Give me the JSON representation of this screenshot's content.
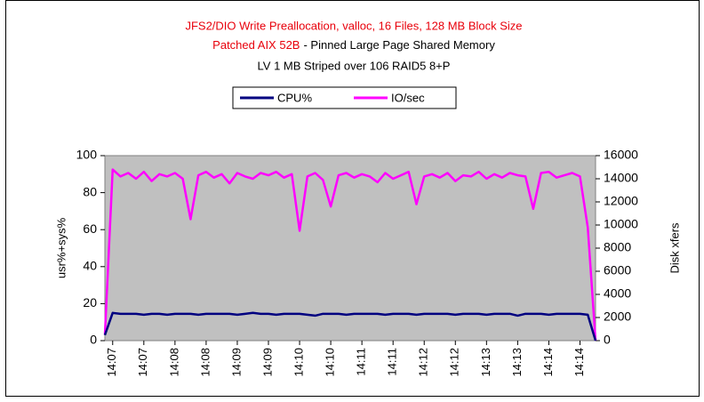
{
  "chart_data": {
    "type": "line",
    "title": "JFS2/DIO Write Preallocation, valloc, 16 Files, 128 MB Block Size",
    "subtitle": [
      "Patched AIX 52B",
      "- Pinned Large Page Shared Memory"
    ],
    "subtitle2": "LV 1 MB Striped over 106 RAID5 8+P",
    "y_label": "usr%+sys%",
    "y2_label": "Disk xfers",
    "legend": "top",
    "categories": [
      null,
      "14:07",
      null,
      null,
      null,
      "14:07",
      null,
      null,
      null,
      "14:08",
      null,
      null,
      null,
      "14:08",
      null,
      null,
      null,
      "14:09",
      null,
      null,
      null,
      "14:09",
      null,
      null,
      null,
      "14:10",
      null,
      null,
      null,
      "14:10",
      null,
      null,
      null,
      "14:11",
      null,
      null,
      null,
      "14:11",
      null,
      null,
      null,
      "14:12",
      null,
      null,
      null,
      "14:12",
      null,
      null,
      null,
      "14:13",
      null,
      null,
      null,
      "14:13",
      null,
      null,
      null,
      "14:14",
      null,
      null,
      null,
      "14:14",
      null,
      null
    ],
    "series": [
      {
        "name": "CPU%",
        "color": "#000080",
        "values": [
          3,
          15,
          14.5,
          14.5,
          14.5,
          14,
          14.5,
          14.5,
          14,
          14.5,
          14.5,
          14.5,
          14,
          14.5,
          14.5,
          14.5,
          14.5,
          14,
          14.5,
          15,
          14.5,
          14.5,
          14,
          14.5,
          14.5,
          14.5,
          14,
          13.5,
          14.5,
          14.5,
          14.5,
          14,
          14.5,
          14.5,
          14.5,
          14.5,
          14,
          14.5,
          14.5,
          14.5,
          14,
          14.5,
          14.5,
          14.5,
          14.5,
          14,
          14.5,
          14.5,
          14.5,
          14,
          14.5,
          14.5,
          14.5,
          13.5,
          14.5,
          14.5,
          14.5,
          14,
          14.5,
          14.5,
          14.5,
          14.5,
          14,
          0
        ]
      },
      {
        "name": "IO/sec",
        "color": "#ff00ff",
        "axis": "y2",
        "values": [
          500,
          14800,
          14200,
          14500,
          14000,
          14600,
          13800,
          14400,
          14200,
          14500,
          14000,
          10500,
          14300,
          14600,
          14100,
          14400,
          13600,
          14500,
          14200,
          14000,
          14500,
          14300,
          14600,
          14100,
          14400,
          9500,
          14200,
          14500,
          13900,
          11600,
          14300,
          14500,
          14100,
          14400,
          14200,
          13700,
          14500,
          14000,
          14300,
          14600,
          11800,
          14200,
          14400,
          14100,
          14500,
          13800,
          14300,
          14200,
          14600,
          14000,
          14400,
          14100,
          14500,
          14300,
          14200,
          11400,
          14500,
          14600,
          14100,
          14300,
          14500,
          14200,
          9800,
          0
        ]
      }
    ],
    "ylim": [
      0,
      100
    ],
    "yticks": [
      0,
      20,
      40,
      60,
      80,
      100
    ],
    "y2lim": [
      0,
      16000
    ],
    "y2ticks": [
      0,
      2000,
      4000,
      6000,
      8000,
      10000,
      12000,
      14000,
      16000
    ]
  }
}
